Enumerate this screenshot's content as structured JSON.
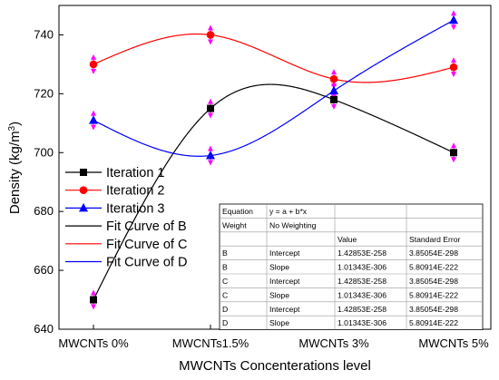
{
  "chart_data": {
    "type": "line",
    "xlabel": "MWCNTs Concenterations level",
    "ylabel": "Density (kg/m",
    "ylabel_sup": "3",
    "ylabel_close": ")",
    "categories": [
      "MWCNTs 0%",
      "MWCNTs1.5%",
      "MWCNTs 3%",
      "MWCNTs 5%"
    ],
    "ylim": [
      640,
      750
    ],
    "yticks": [
      640,
      660,
      680,
      700,
      720,
      740
    ],
    "series": [
      {
        "name": "Iteration 1",
        "marker": "square",
        "color": "#000000",
        "values": [
          650,
          715,
          718,
          700
        ]
      },
      {
        "name": "Iteration 2",
        "marker": "circle",
        "color": "#ff0000",
        "values": [
          730,
          740,
          725,
          729
        ]
      },
      {
        "name": "Iteration 3",
        "marker": "triangle",
        "color": "#0000ff",
        "values": [
          711,
          699,
          721,
          745
        ]
      }
    ],
    "fit_curves": [
      {
        "name": "Fit Curve of B",
        "color": "#000000",
        "of": "Iteration 1"
      },
      {
        "name": "Fit Curve of C",
        "color": "#ff0000",
        "of": "Iteration 2"
      },
      {
        "name": "Fit Curve of D",
        "color": "#0000ff",
        "of": "Iteration 3"
      }
    ],
    "error_bar_color": "#ff00ff",
    "legend_position": "left",
    "grid": false
  },
  "fit_table": {
    "equation_label": "Equation",
    "equation": "y = a + b*x",
    "weight_label": "Weight",
    "weight": "No Weighting",
    "headers": [
      "",
      "",
      "Value",
      "Standard Error"
    ],
    "rows": [
      [
        "B",
        "Intercept",
        "1.42853E-258",
        "3.85054E-298"
      ],
      [
        "B",
        "Slope",
        "1.01343E-306",
        "5.80914E-222"
      ],
      [
        "C",
        "Intercept",
        "1.42853E-258",
        "3.85054E-298"
      ],
      [
        "C",
        "Slope",
        "1.01343E-306",
        "5.80914E-222"
      ],
      [
        "D",
        "Intercept",
        "1.42853E-258",
        "3.85054E-298"
      ],
      [
        "D",
        "Slope",
        "1.01343E-306",
        "5.80914E-222"
      ]
    ]
  }
}
